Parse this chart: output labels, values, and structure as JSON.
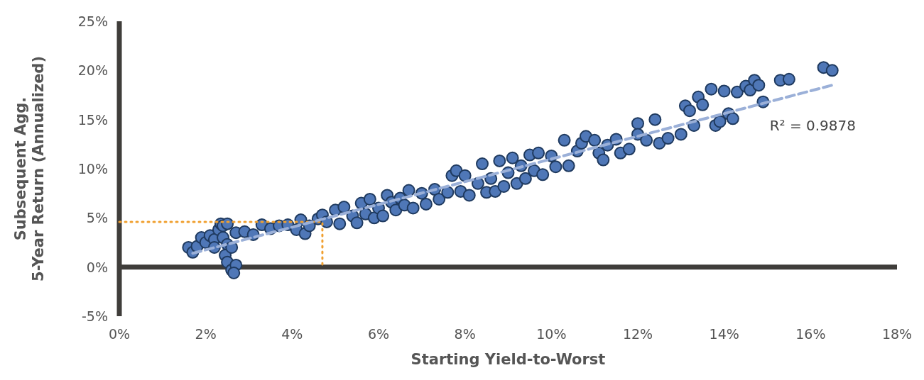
{
  "chart_data": {
    "type": "scatter",
    "xlabel": "Starting Yield-to-Worst",
    "ylabel": "Subsequent Agg.\n5-Year Return (Annualized)",
    "xlim": [
      0,
      18
    ],
    "xticks": [
      {
        "value": 0,
        "label": "0%"
      },
      {
        "value": 2,
        "label": "2%"
      },
      {
        "value": 4,
        "label": "4%"
      },
      {
        "value": 6,
        "label": "6%"
      },
      {
        "value": 8,
        "label": "8%"
      },
      {
        "value": 10,
        "label": "10%"
      },
      {
        "value": 12,
        "label": "12%"
      },
      {
        "value": 14,
        "label": "14%"
      },
      {
        "value": 16,
        "label": "16%"
      },
      {
        "value": 18,
        "label": "18%"
      }
    ],
    "ylim": [
      -5,
      25
    ],
    "yticks": [
      {
        "value": -5,
        "label": "-5%"
      },
      {
        "value": 0,
        "label": "0%"
      },
      {
        "value": 5,
        "label": "5%"
      },
      {
        "value": 10,
        "label": "10%"
      },
      {
        "value": 15,
        "label": "15%"
      },
      {
        "value": 20,
        "label": "20%"
      },
      {
        "value": 25,
        "label": "25%"
      }
    ],
    "annotations": [
      "R² = 0.9878"
    ],
    "series": [
      {
        "type": "line",
        "color": "#f0a030",
        "line_style": "dotted",
        "x": [
          0,
          4.7,
          4.7
        ],
        "values": [
          4.6,
          4.6,
          0
        ]
      },
      {
        "color": "#4f77b7",
        "marker": "circle",
        "x": [
          1.6,
          1.7,
          1.8,
          1.9,
          2.0,
          2.1,
          2.2,
          2.3,
          2.35,
          2.4,
          2.5,
          2.2,
          2.4,
          2.5,
          2.45,
          2.5,
          2.6,
          2.6,
          2.7,
          2.65,
          2.7,
          2.9,
          3.1,
          3.3,
          3.5,
          3.7,
          3.9,
          4.1,
          4.2,
          4.3,
          4.4,
          4.6,
          4.7,
          4.8,
          5.0,
          5.1,
          5.2,
          5.4,
          5.5,
          5.6,
          5.7,
          5.8,
          5.9,
          6.0,
          6.1,
          6.2,
          6.3,
          6.4,
          6.5,
          6.6,
          6.7,
          6.8,
          7.0,
          7.1,
          7.3,
          7.4,
          7.6,
          7.7,
          7.8,
          7.9,
          8.0,
          8.1,
          8.3,
          8.4,
          8.5,
          8.6,
          8.7,
          8.8,
          8.9,
          9.0,
          9.1,
          9.2,
          9.3,
          9.4,
          9.5,
          9.6,
          9.7,
          9.8,
          10.0,
          10.1,
          10.3,
          10.4,
          10.6,
          10.7,
          10.8,
          11.0,
          11.1,
          11.2,
          11.3,
          11.5,
          11.6,
          11.8,
          12.0,
          12.0,
          12.2,
          12.4,
          12.5,
          12.7,
          13.0,
          13.1,
          13.2,
          13.3,
          13.4,
          13.5,
          13.7,
          13.8,
          13.9,
          14.0,
          14.1,
          14.2,
          14.3,
          14.5,
          14.6,
          14.7,
          14.8,
          14.9,
          15.3,
          15.5,
          16.3,
          16.5
        ],
        "values": [
          2.0,
          1.5,
          2.1,
          3.0,
          2.5,
          3.2,
          2.8,
          3.8,
          4.4,
          4.2,
          4.4,
          2.0,
          3.0,
          2.3,
          1.2,
          0.5,
          -0.3,
          2.0,
          0.2,
          -0.6,
          3.5,
          3.6,
          3.3,
          4.3,
          3.9,
          4.2,
          4.3,
          3.8,
          4.8,
          3.4,
          4.2,
          4.9,
          5.3,
          4.6,
          5.8,
          4.4,
          6.1,
          5.2,
          4.5,
          6.5,
          5.4,
          6.9,
          5.0,
          6.0,
          5.2,
          7.3,
          6.6,
          5.8,
          7.0,
          6.3,
          7.8,
          6.0,
          7.5,
          6.4,
          7.9,
          6.9,
          7.6,
          9.3,
          9.8,
          7.7,
          9.3,
          7.3,
          8.5,
          10.5,
          7.6,
          9.0,
          7.7,
          10.8,
          8.2,
          9.6,
          11.1,
          8.5,
          10.3,
          9.0,
          11.4,
          9.8,
          11.6,
          9.4,
          11.3,
          10.2,
          12.9,
          10.3,
          11.8,
          12.6,
          13.3,
          12.9,
          11.6,
          10.9,
          12.4,
          13.0,
          11.6,
          12.0,
          14.6,
          13.5,
          12.9,
          15.0,
          12.6,
          13.1,
          13.5,
          16.4,
          15.9,
          14.4,
          17.3,
          16.5,
          18.1,
          14.4,
          14.8,
          17.9,
          15.6,
          15.1,
          17.8,
          18.4,
          18.0,
          19.0,
          18.5,
          16.8,
          19.0,
          19.1,
          20.3,
          20.0
        ]
      },
      {
        "type": "line",
        "color": "#9bb0d8",
        "line_style": "dashed",
        "x": [
          1.7,
          16.5
        ],
        "values": [
          1.4,
          18.5
        ]
      }
    ]
  }
}
